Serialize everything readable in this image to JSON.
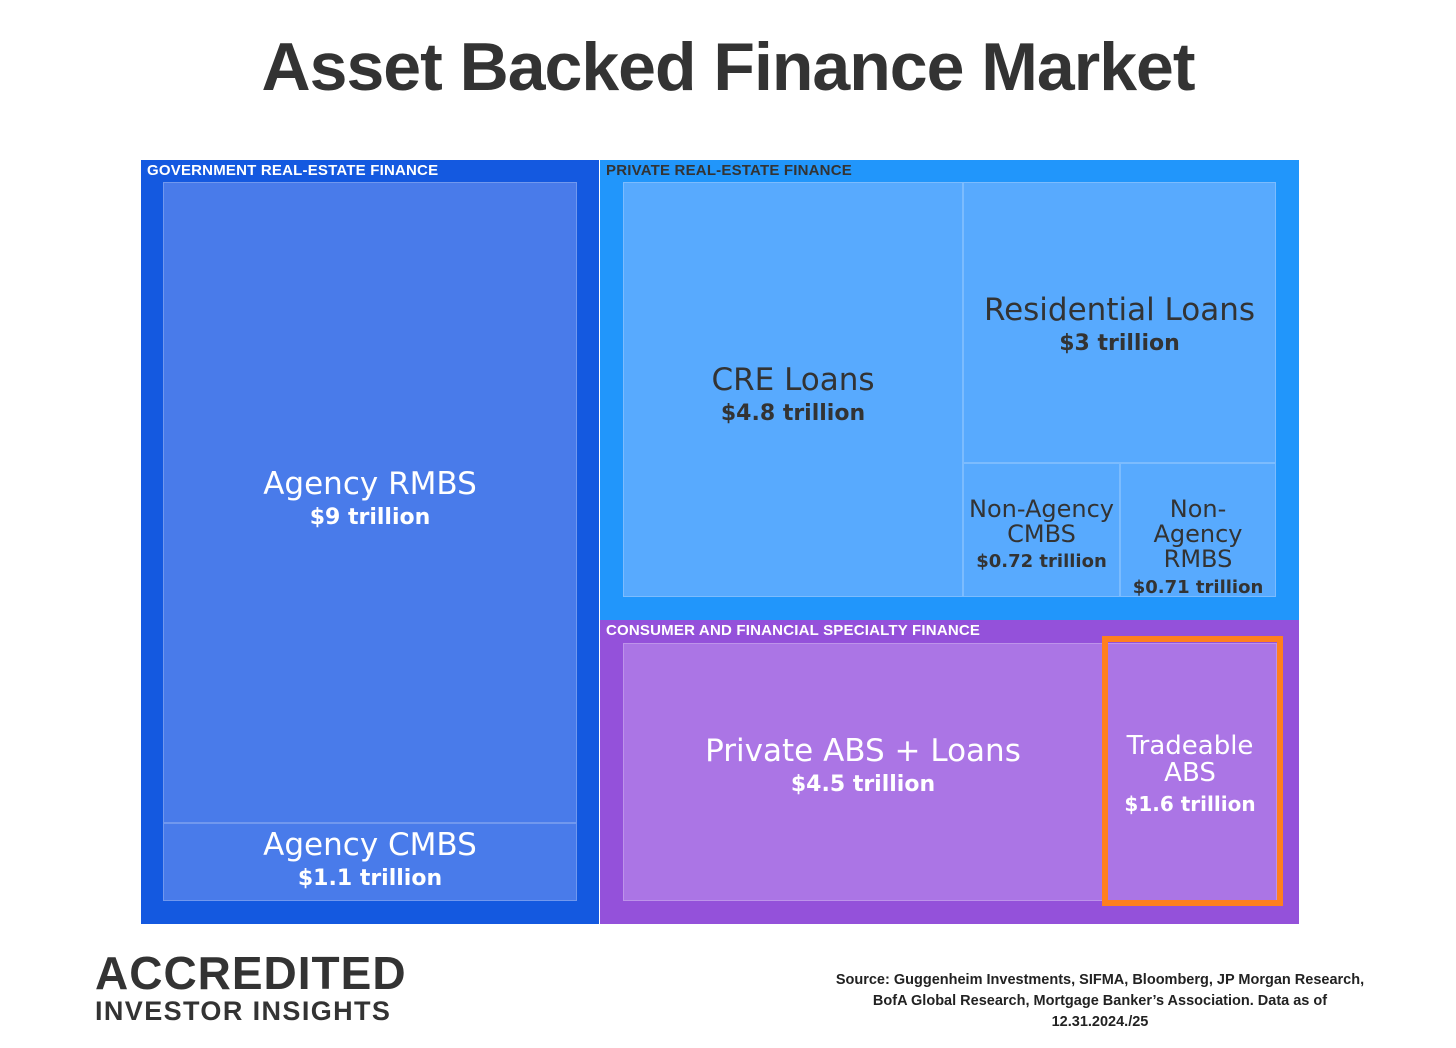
{
  "title": "Asset Backed Finance Market",
  "colors": {
    "government_group": "#1459e0",
    "government_tile": "#497bea",
    "private_group": "#2196fb",
    "private_tile": "#58aafe",
    "consumer_group": "#9451da",
    "consumer_tile": "#ab75e5",
    "highlight": "#ff7f1e"
  },
  "chart_data": {
    "type": "treemap",
    "title": "Asset Backed Finance Market",
    "unit": "trillion",
    "groups": [
      {
        "name": "GOVERNMENT REAL-ESTATE FINANCE",
        "items": [
          {
            "name": "Agency RMBS",
            "value": 9,
            "label": "$9 trillion"
          },
          {
            "name": "Agency CMBS",
            "value": 1.1,
            "label": "$1.1 trillion"
          }
        ]
      },
      {
        "name": "PRIVATE REAL-ESTATE FINANCE",
        "items": [
          {
            "name": "CRE Loans",
            "value": 4.8,
            "label": "$4.8 trillion"
          },
          {
            "name": "Residential Loans",
            "value": 3,
            "label": "$3 trillion"
          },
          {
            "name": "Non-Agency CMBS",
            "value": 0.72,
            "label": "$0.72 trillion"
          },
          {
            "name": "Non-Agency RMBS",
            "value": 0.71,
            "label": "$0.71 trillion"
          }
        ]
      },
      {
        "name": "CONSUMER AND FINANCIAL SPECIALTY FINANCE",
        "items": [
          {
            "name": "Private ABS + Loans",
            "value": 4.5,
            "label": "$4.5 trillion"
          },
          {
            "name": "Tradeable ABS",
            "value": 1.6,
            "label": "$1.6 trillion",
            "highlighted": true
          }
        ]
      }
    ]
  },
  "logo": {
    "line1": "ACCREDITED",
    "line2": "INVESTOR INSIGHTS"
  },
  "source": "Source: Guggenheim Investments, SIFMA, Bloomberg, JP Morgan Research, BofA Global Research, Mortgage Banker’s Association. Data as of 12.31.2024./25"
}
